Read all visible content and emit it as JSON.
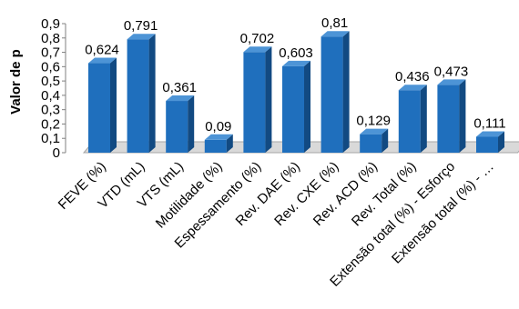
{
  "chart_data": {
    "type": "bar",
    "ylabel": "Valor de p",
    "ylim": [
      0,
      0.9
    ],
    "yticks": [
      "0",
      "0,1",
      "0,2",
      "0,3",
      "0,4",
      "0,5",
      "0,6",
      "0,7",
      "0,8",
      "0,9"
    ],
    "categories": [
      "FEVE (%)",
      "VTD (mL)",
      "VTS (mL)",
      "Motilidade (%)",
      "Espessamento (%)",
      "Rev. DAE (%)",
      "Rev. CXE (%)",
      "Rev. ACD (%)",
      "Rev. Total (%)",
      "Extensão total (%) - Esforço",
      "Extensão total (%) - …"
    ],
    "values": [
      0.624,
      0.791,
      0.361,
      0.09,
      0.702,
      0.603,
      0.81,
      0.129,
      0.436,
      0.473,
      0.111
    ],
    "data_labels": [
      "0,624",
      "0,791",
      "0,361",
      "0,09",
      "0,702",
      "0,603",
      "0,81",
      "0,129",
      "0,436",
      "0,473",
      "0,111"
    ],
    "grid": false,
    "legend": "none",
    "colors": {
      "bar_front": "#1f6fbd",
      "bar_side": "#124a82",
      "bar_top": "#4d94d6",
      "floor": "#d9d9d9"
    }
  }
}
